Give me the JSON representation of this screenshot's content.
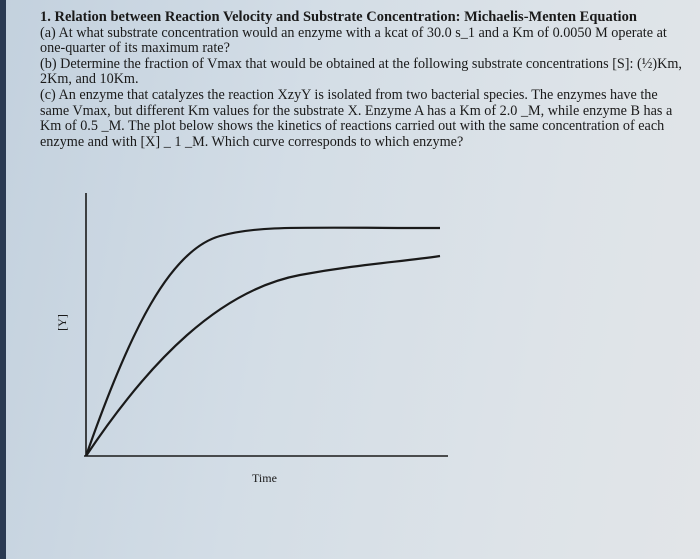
{
  "question": {
    "title": "1. Relation between Reaction Velocity and Substrate Concentration: Michaelis-Menten Equation",
    "part_a": "(a) At what substrate concentration would an enzyme with a kcat of 30.0 s_1 and a Km of 0.0050 M operate at one-quarter of its maximum rate?",
    "part_b": "(b) Determine the fraction of Vmax that would be obtained at the following substrate concentrations [S]: (½)Km, 2Km, and 10Km.",
    "part_c": "(c) An enzyme that catalyzes the reaction XzyY is isolated from two bacterial species. The enzymes have the same Vmax, but different Km values for the substrate X. Enzyme A has a Km of 2.0 _M, while enzyme B has a Km of 0.5 _M. The plot below shows the kinetics of reactions carried out with the same concentration of each enzyme and with [X] _ 1 _M. Which curve corresponds to which enzyme?"
  },
  "plot": {
    "y_label": "[Y]",
    "x_label": "Time"
  },
  "colors": {
    "ink": "#1a1a1a",
    "paper": "#d6dee5"
  }
}
